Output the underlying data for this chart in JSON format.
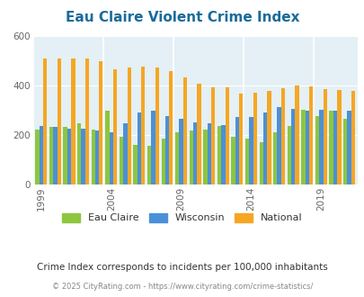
{
  "title": "Eau Claire Violent Crime Index",
  "subtitle": "Crime Index corresponds to incidents per 100,000 inhabitants",
  "footer": "© 2025 CityRating.com - https://www.cityrating.com/crime-statistics/",
  "years": [
    1999,
    2000,
    2001,
    2002,
    2003,
    2004,
    2005,
    2006,
    2007,
    2008,
    2009,
    2010,
    2011,
    2012,
    2013,
    2014,
    2015,
    2016,
    2017,
    2018,
    2019,
    2020,
    2021
  ],
  "eau_claire": [
    220,
    230,
    230,
    245,
    220,
    295,
    190,
    160,
    155,
    185,
    210,
    215,
    220,
    235,
    190,
    185,
    170,
    210,
    235,
    300,
    275,
    295,
    265
  ],
  "wisconsin": [
    235,
    230,
    225,
    225,
    215,
    210,
    245,
    290,
    295,
    275,
    265,
    250,
    245,
    240,
    270,
    270,
    290,
    310,
    305,
    295,
    300,
    295,
    295
  ],
  "national": [
    507,
    507,
    507,
    507,
    495,
    463,
    470,
    475,
    470,
    458,
    430,
    405,
    390,
    390,
    365,
    368,
    378,
    387,
    400,
    396,
    384,
    380,
    378
  ],
  "bar_colors": {
    "eau_claire": "#8dc63f",
    "wisconsin": "#4a90d9",
    "national": "#f5a623"
  },
  "bg_color": "#e4f0f5",
  "ylim": [
    0,
    600
  ],
  "yticks": [
    0,
    200,
    400,
    600
  ],
  "xlabel_years": [
    1999,
    2004,
    2009,
    2014,
    2019
  ],
  "title_color": "#1a6b9a",
  "subtitle_color": "#333333",
  "footer_color": "#888888",
  "legend_labels": [
    "Eau Claire",
    "Wisconsin",
    "National"
  ],
  "bar_width": 0.28
}
